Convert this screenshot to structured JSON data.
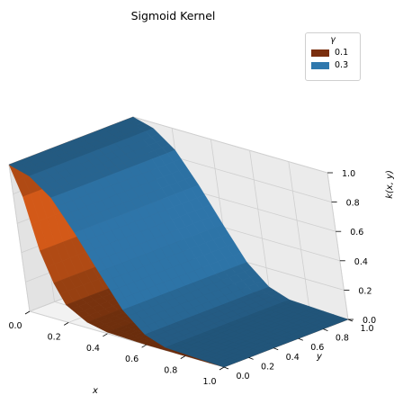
{
  "chart_data": {
    "type": "surface3d",
    "title": "Sigmoid Kernel",
    "xlabel": "x",
    "ylabel": "y",
    "zlabel": "k(x, y)",
    "xlim": [
      0,
      1
    ],
    "ylim": [
      0,
      1
    ],
    "zlim": [
      0,
      1
    ],
    "xticks": [
      "0.0",
      "0.2",
      "0.4",
      "0.6",
      "0.8",
      "1.0"
    ],
    "yticks": [
      "0.0",
      "0.2",
      "0.4",
      "0.6",
      "0.8",
      "1.0"
    ],
    "zticks": [
      "0.0",
      "0.2",
      "0.4",
      "0.6",
      "0.8",
      "1.0"
    ],
    "grid": true,
    "legend": {
      "title": "γ",
      "placement": "top-right",
      "entries": [
        {
          "label": "0.1",
          "color": "#7a2e0e"
        },
        {
          "label": "0.3",
          "color": "#2f78ad"
        }
      ]
    },
    "series": [
      {
        "name": "0.1",
        "color": "#b04a14",
        "profile_x": [
          0.0,
          0.05,
          0.1,
          0.15,
          0.2,
          0.3,
          0.4,
          0.6,
          1.0
        ],
        "profile_k": [
          1.0,
          0.8,
          0.45,
          0.25,
          0.12,
          0.04,
          0.01,
          0.0,
          0.0
        ]
      },
      {
        "name": "0.3",
        "color": "#2f78ad",
        "profile_x": [
          0.0,
          0.1,
          0.2,
          0.3,
          0.4,
          0.5,
          0.6,
          0.7,
          1.0
        ],
        "profile_k": [
          1.0,
          0.96,
          0.85,
          0.65,
          0.42,
          0.2,
          0.07,
          0.02,
          0.0
        ]
      }
    ]
  }
}
